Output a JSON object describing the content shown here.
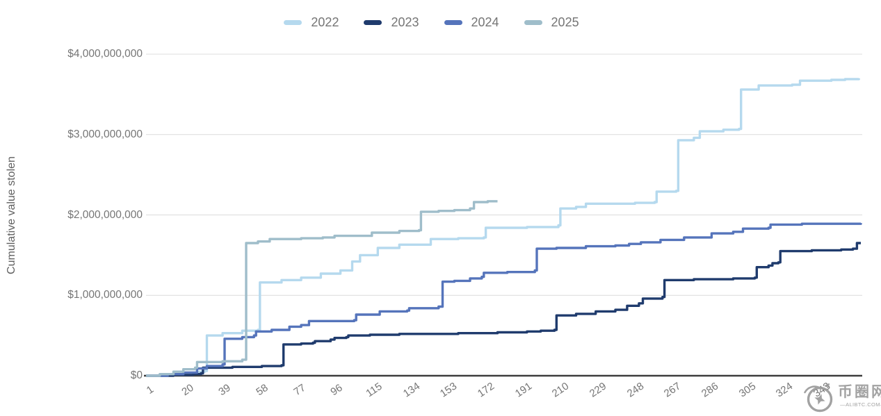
{
  "chart_data": {
    "type": "line",
    "subtype": "cumulative step line (step-after)",
    "title": "",
    "xlabel": "",
    "ylabel": "Cumulative value stolen",
    "values_unit": "USD billions",
    "legend": {
      "position": "top",
      "entries": [
        "2022",
        "2023",
        "2024",
        "2025"
      ]
    },
    "y_axis": {
      "tick_labels": [
        "$0",
        "$1,000,000,000",
        "$2,000,000,000",
        "$3,000,000,000",
        "$4,000,000,000"
      ],
      "tick_values_billions": [
        0,
        1,
        2,
        3,
        4
      ],
      "range_billions": [
        0,
        4
      ],
      "grid": true
    },
    "x_axis": {
      "unit": "day of year",
      "tick_days": [
        1,
        20,
        39,
        58,
        77,
        96,
        115,
        134,
        153,
        172,
        191,
        210,
        229,
        248,
        267,
        286,
        305,
        324,
        343
      ],
      "range_days": [
        1,
        365
      ]
    },
    "series": [
      {
        "name": "2022",
        "color": "#b5d9ee",
        "points": [
          [
            1,
            0
          ],
          [
            10,
            0.01
          ],
          [
            20,
            0.03
          ],
          [
            28,
            0.05
          ],
          [
            31,
            0.06
          ],
          [
            32,
            0.5
          ],
          [
            40,
            0.53
          ],
          [
            50,
            0.56
          ],
          [
            58,
            0.57
          ],
          [
            59,
            1.16
          ],
          [
            70,
            1.19
          ],
          [
            80,
            1.22
          ],
          [
            90,
            1.27
          ],
          [
            100,
            1.31
          ],
          [
            106,
            1.42
          ],
          [
            110,
            1.5
          ],
          [
            119,
            1.59
          ],
          [
            130,
            1.63
          ],
          [
            146,
            1.7
          ],
          [
            160,
            1.71
          ],
          [
            173,
            1.72
          ],
          [
            174,
            1.84
          ],
          [
            195,
            1.85
          ],
          [
            211,
            1.87
          ],
          [
            212,
            2.08
          ],
          [
            220,
            2.1
          ],
          [
            225,
            2.14
          ],
          [
            250,
            2.15
          ],
          [
            260,
            2.16
          ],
          [
            261,
            2.29
          ],
          [
            271,
            2.3
          ],
          [
            272,
            2.93
          ],
          [
            280,
            2.96
          ],
          [
            283,
            3.04
          ],
          [
            295,
            3.06
          ],
          [
            303,
            3.07
          ],
          [
            304,
            3.56
          ],
          [
            313,
            3.61
          ],
          [
            330,
            3.62
          ],
          [
            334,
            3.67
          ],
          [
            350,
            3.68
          ],
          [
            357,
            3.69
          ],
          [
            364,
            3.7
          ]
        ]
      },
      {
        "name": "2023",
        "color": "#1f3b6d",
        "points": [
          [
            1,
            0
          ],
          [
            15,
            0.01
          ],
          [
            25,
            0.02
          ],
          [
            29,
            0.03
          ],
          [
            30,
            0.1
          ],
          [
            45,
            0.11
          ],
          [
            60,
            0.12
          ],
          [
            70,
            0.13
          ],
          [
            71,
            0.39
          ],
          [
            80,
            0.4
          ],
          [
            86,
            0.41
          ],
          [
            87,
            0.43
          ],
          [
            95,
            0.45
          ],
          [
            97,
            0.47
          ],
          [
            103,
            0.48
          ],
          [
            104,
            0.5
          ],
          [
            115,
            0.51
          ],
          [
            130,
            0.52
          ],
          [
            160,
            0.53
          ],
          [
            180,
            0.54
          ],
          [
            195,
            0.55
          ],
          [
            202,
            0.56
          ],
          [
            209,
            0.57
          ],
          [
            210,
            0.75
          ],
          [
            220,
            0.77
          ],
          [
            230,
            0.8
          ],
          [
            240,
            0.82
          ],
          [
            246,
            0.87
          ],
          [
            252,
            0.9
          ],
          [
            254,
            0.96
          ],
          [
            264,
            0.98
          ],
          [
            265,
            1.19
          ],
          [
            280,
            1.2
          ],
          [
            300,
            1.21
          ],
          [
            311,
            1.22
          ],
          [
            312,
            1.35
          ],
          [
            318,
            1.37
          ],
          [
            320,
            1.4
          ],
          [
            323,
            1.41
          ],
          [
            324,
            1.55
          ],
          [
            340,
            1.56
          ],
          [
            355,
            1.57
          ],
          [
            361,
            1.58
          ],
          [
            363,
            1.65
          ],
          [
            365,
            1.65
          ]
        ]
      },
      {
        "name": "2024",
        "color": "#5574bb",
        "points": [
          [
            1,
            0
          ],
          [
            12,
            0.02
          ],
          [
            20,
            0.04
          ],
          [
            27,
            0.09
          ],
          [
            32,
            0.12
          ],
          [
            40,
            0.14
          ],
          [
            41,
            0.46
          ],
          [
            50,
            0.48
          ],
          [
            56,
            0.5
          ],
          [
            57,
            0.55
          ],
          [
            65,
            0.57
          ],
          [
            74,
            0.61
          ],
          [
            80,
            0.63
          ],
          [
            84,
            0.68
          ],
          [
            107,
            0.69
          ],
          [
            108,
            0.76
          ],
          [
            120,
            0.8
          ],
          [
            134,
            0.81
          ],
          [
            135,
            0.84
          ],
          [
            150,
            0.86
          ],
          [
            152,
            1.17
          ],
          [
            158,
            1.18
          ],
          [
            166,
            1.21
          ],
          [
            172,
            1.23
          ],
          [
            173,
            1.28
          ],
          [
            185,
            1.29
          ],
          [
            199,
            1.31
          ],
          [
            200,
            1.58
          ],
          [
            210,
            1.59
          ],
          [
            225,
            1.61
          ],
          [
            240,
            1.62
          ],
          [
            247,
            1.64
          ],
          [
            253,
            1.66
          ],
          [
            263,
            1.69
          ],
          [
            275,
            1.72
          ],
          [
            289,
            1.77
          ],
          [
            300,
            1.79
          ],
          [
            305,
            1.83
          ],
          [
            318,
            1.84
          ],
          [
            319,
            1.88
          ],
          [
            335,
            1.89
          ],
          [
            365,
            1.9
          ]
        ]
      },
      {
        "name": "2025",
        "color": "#9fbdca",
        "points": [
          [
            1,
            0
          ],
          [
            8,
            0.02
          ],
          [
            15,
            0.05
          ],
          [
            20,
            0.08
          ],
          [
            26,
            0.1
          ],
          [
            27,
            0.17
          ],
          [
            40,
            0.18
          ],
          [
            50,
            0.2
          ],
          [
            52,
            1.65
          ],
          [
            58,
            1.67
          ],
          [
            64,
            1.7
          ],
          [
            80,
            1.71
          ],
          [
            91,
            1.72
          ],
          [
            97,
            1.74
          ],
          [
            116,
            1.78
          ],
          [
            130,
            1.8
          ],
          [
            140,
            1.81
          ],
          [
            141,
            2.04
          ],
          [
            150,
            2.05
          ],
          [
            158,
            2.06
          ],
          [
            166,
            2.08
          ],
          [
            168,
            2.16
          ],
          [
            175,
            2.17
          ],
          [
            180,
            2.17
          ]
        ]
      }
    ],
    "colors": {
      "axis_text": "#757575",
      "axis_title": "#5f5f5f",
      "gridline": "#dcdcdc",
      "baseline": "#3d3d3d",
      "watermark": "#9b9b9b"
    }
  },
  "watermark": {
    "text": "币圈网",
    "subtext": "—ALIBTC.COM—"
  }
}
